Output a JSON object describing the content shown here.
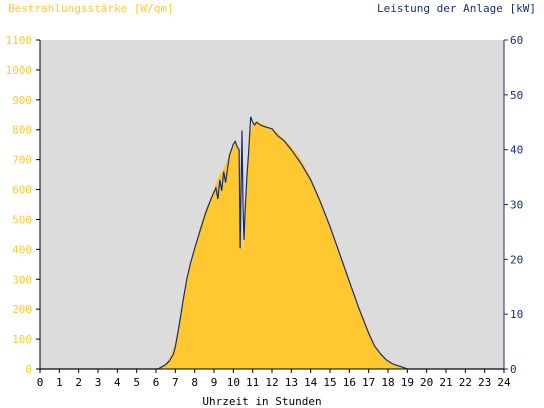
{
  "colors": {
    "plot_background": "#dcdcdc",
    "irradiance": "#ffc830",
    "power": "#1a2e6e",
    "left_axis_text": "#ffc830",
    "right_axis_text": "#1a2e6e",
    "axis": "#000000"
  },
  "chart_data": {
    "type": "area",
    "title_left": "Bestrahlungsstärke [W/qm]",
    "title_right": "Leistung der Anlage [kW]",
    "xlabel": "Uhrzeit in Stunden",
    "xlim": [
      0,
      24
    ],
    "ylim_left": [
      0,
      1100
    ],
    "ylim_right": [
      0,
      60
    ],
    "x_ticks": [
      "0",
      "1",
      "2",
      "3",
      "4",
      "5",
      "6",
      "7",
      "8",
      "9",
      "10",
      "11",
      "12",
      "13",
      "14",
      "15",
      "16",
      "17",
      "18",
      "19",
      "20",
      "21",
      "22",
      "23",
      "24"
    ],
    "y_left_ticks": [
      "0",
      "100",
      "200",
      "300",
      "400",
      "500",
      "600",
      "700",
      "800",
      "900",
      "1000",
      "1100"
    ],
    "y_right_ticks": [
      "0",
      "10",
      "20",
      "30",
      "40",
      "50",
      "60"
    ],
    "grid": false,
    "series": [
      {
        "name": "Bestrahlungsstärke [W/qm]",
        "axis": "left",
        "x": [
          0,
          6.2,
          6.4,
          6.6,
          6.8,
          7.0,
          7.2,
          7.4,
          7.6,
          7.8,
          8.0,
          8.3,
          8.6,
          8.9,
          9.1,
          9.3,
          9.5,
          9.7,
          9.9,
          10.1,
          10.3,
          10.5,
          10.6,
          10.7,
          10.8,
          11.0,
          11.2,
          11.5,
          11.8,
          12.0,
          12.3,
          12.6,
          13.0,
          13.5,
          14.0,
          14.5,
          15.0,
          15.5,
          16.0,
          16.5,
          17.0,
          17.3,
          17.6,
          17.9,
          18.2,
          18.5,
          18.8,
          19.1,
          19.3,
          24
        ],
        "y": [
          0,
          0,
          10,
          25,
          50,
          90,
          160,
          230,
          300,
          360,
          410,
          480,
          540,
          585,
          620,
          650,
          670,
          700,
          730,
          760,
          735,
          390,
          480,
          620,
          770,
          820,
          830,
          820,
          810,
          805,
          790,
          770,
          745,
          700,
          640,
          570,
          480,
          390,
          300,
          210,
          130,
          85,
          55,
          35,
          20,
          12,
          6,
          2,
          0,
          0
        ]
      },
      {
        "name": "Leistung der Anlage [kW]",
        "axis": "right",
        "x": [
          0,
          6.1,
          6.3,
          6.5,
          6.7,
          6.9,
          7.0,
          7.2,
          7.4,
          7.6,
          7.8,
          8.0,
          8.3,
          8.6,
          8.9,
          9.1,
          9.2,
          9.3,
          9.4,
          9.5,
          9.6,
          9.7,
          9.8,
          9.9,
          10.0,
          10.1,
          10.2,
          10.3,
          10.35,
          10.45,
          10.5,
          10.55,
          10.6,
          10.7,
          10.8,
          10.9,
          11.0,
          11.1,
          11.2,
          11.4,
          11.6,
          11.8,
          12.0,
          12.3,
          12.6,
          13.0,
          13.5,
          14.0,
          14.5,
          15.0,
          15.5,
          16.0,
          16.5,
          17.0,
          17.3,
          17.6,
          17.9,
          18.2,
          18.5,
          18.8,
          19.0,
          24
        ],
        "y": [
          0,
          0,
          0.4,
          0.8,
          1.5,
          2.7,
          4.0,
          8.0,
          12.5,
          16.5,
          19.5,
          22.0,
          25.5,
          28.8,
          31.5,
          33.0,
          31.0,
          34.5,
          32.5,
          36.0,
          34.0,
          36.5,
          39.0,
          40.0,
          41.0,
          41.5,
          40.5,
          40.0,
          22.0,
          43.5,
          30.0,
          23.5,
          28.0,
          35.0,
          40.0,
          46.0,
          45.0,
          44.5,
          45.0,
          44.5,
          44.2,
          44.0,
          43.8,
          42.5,
          41.7,
          40.0,
          37.5,
          34.5,
          30.5,
          26.0,
          21.0,
          16.0,
          11.0,
          6.5,
          4.2,
          2.8,
          1.7,
          1.0,
          0.6,
          0.3,
          0,
          0
        ]
      }
    ]
  }
}
